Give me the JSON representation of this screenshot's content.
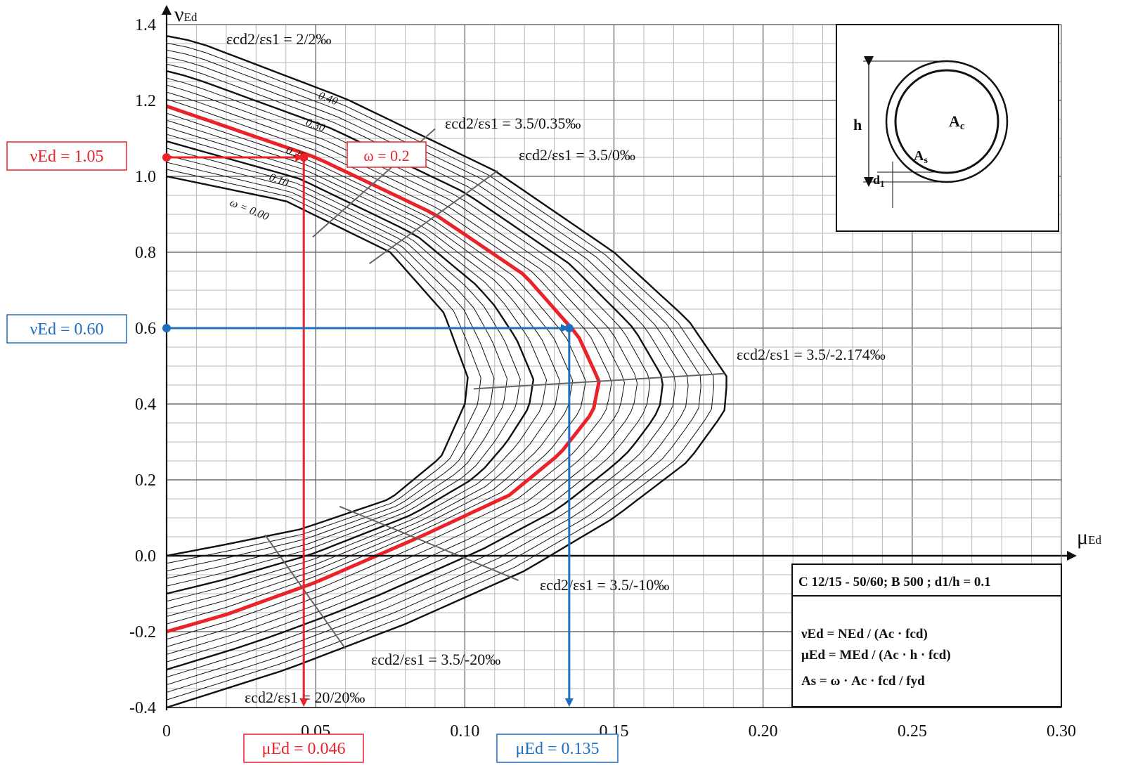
{
  "chart_data": {
    "type": "line",
    "title": "",
    "xlabel": "μEd",
    "ylabel": "νEd",
    "xlim": [
      0,
      0.3
    ],
    "ylim": [
      -0.4,
      1.4
    ],
    "grid": true,
    "x_ticks": [
      "0",
      "0.05",
      "0.10",
      "0.15",
      "0.20",
      "0.25",
      "0.30"
    ],
    "y_ticks": [
      "-0.4",
      "-0.2",
      "0.0",
      "0.2",
      "0.4",
      "0.6",
      "0.8",
      "1.0",
      "1.2",
      "1.4"
    ],
    "omega_labels": [
      "ω = 0.00",
      "0.10",
      "0.20",
      "0.30",
      "0.40"
    ],
    "series": [
      {
        "omega": 0.0,
        "points": [
          [
            0.0,
            1.0
          ],
          [
            0.04,
            0.935
          ],
          [
            0.075,
            0.8
          ],
          [
            0.093,
            0.64
          ],
          [
            0.101,
            0.47
          ],
          [
            0.1,
            0.4
          ],
          [
            0.092,
            0.26
          ],
          [
            0.075,
            0.15
          ],
          [
            0.045,
            0.07
          ],
          [
            0.02,
            0.03
          ],
          [
            0.0,
            0.0
          ]
        ]
      },
      {
        "omega": 0.2,
        "points": [
          [
            0.0,
            1.185
          ],
          [
            0.05,
            1.05
          ],
          [
            0.09,
            0.9
          ],
          [
            0.12,
            0.74
          ],
          [
            0.138,
            0.58
          ],
          [
            0.145,
            0.46
          ],
          [
            0.143,
            0.38
          ],
          [
            0.132,
            0.27
          ],
          [
            0.115,
            0.16
          ],
          [
            0.085,
            0.05
          ],
          [
            0.05,
            -0.07
          ],
          [
            0.02,
            -0.155
          ],
          [
            0.0,
            -0.2
          ]
        ]
      },
      {
        "omega": 0.4,
        "points": [
          [
            0.0,
            1.37
          ],
          [
            0.01,
            1.355
          ],
          [
            0.06,
            1.205
          ],
          [
            0.11,
            1.015
          ],
          [
            0.15,
            0.8
          ],
          [
            0.175,
            0.62
          ],
          [
            0.188,
            0.47
          ],
          [
            0.187,
            0.38
          ],
          [
            0.175,
            0.25
          ],
          [
            0.15,
            0.1
          ],
          [
            0.12,
            -0.04
          ],
          [
            0.08,
            -0.18
          ],
          [
            0.04,
            -0.3
          ],
          [
            0.0,
            -0.4
          ]
        ]
      }
    ],
    "omega_step": 0.02,
    "strain_labels": [
      "εcd2/εs1 = 2/2‰",
      "εcd2/εs1 = 3.5/0.35‰",
      "εcd2/εs1 = 3.5/0‰",
      "εcd2/εs1 = 3.5/-2.174‰",
      "εcd2/εs1 = 3.5/-10‰",
      "εcd2/εs1 = 3.5/-20‰",
      "εcd2/εs1 = 20/20‰"
    ],
    "annotations": {
      "red": {
        "nu": 1.05,
        "mu": 0.046,
        "omega": 0.2,
        "nu_label": "νEd = 1.05",
        "mu_label": "μEd = 0.046",
        "omega_label": "ω = 0.2",
        "color": "#e8232a"
      },
      "blue": {
        "nu": 0.6,
        "mu": 0.135,
        "nu_label": "νEd = 0.60",
        "mu_label": "μEd = 0.135",
        "color": "#1f6fbf"
      }
    },
    "info_box": {
      "title": "C 12/15 - 50/60; B 500 ; d1/h = 0.1",
      "formula_nu": "νEd = NEd / (Ac · fcd)",
      "formula_mu": "μEd = MEd / (Ac · h · fcd)",
      "formula_as": "As = ω · Ac · fcd / fyd"
    },
    "section": {
      "labels": [
        "h",
        "Ac",
        "As",
        "d1"
      ]
    }
  }
}
